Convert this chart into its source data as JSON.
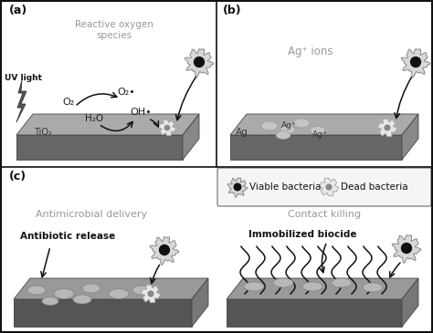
{
  "bg_color": "#ffffff",
  "panel_a_label": "(a)",
  "panel_b_label": "(b)",
  "panel_c_label": "(c)",
  "surf_top_a": "#aaaaaa",
  "surf_side_a": "#666666",
  "surf_right_a": "#888888",
  "surf_top_b": "#aaaaaa",
  "surf_side_b": "#666666",
  "surf_right_b": "#888888",
  "surf_top_cl": "#999999",
  "surf_side_cl": "#555555",
  "surf_right_cl": "#777777",
  "surf_top_cr": "#999999",
  "surf_side_cr": "#555555",
  "surf_right_cr": "#777777",
  "text_gray": "#999999",
  "text_black": "#111111",
  "label_uv": "UV light",
  "label_ros": "Reactive oxygen\nspecies",
  "label_tio2": "TiO₂",
  "label_o2": "O₂",
  "label_o2rad": "O₂•",
  "label_h2o": "H₂O",
  "label_oh": "OH•",
  "label_ag_ions": "Ag⁺ ions",
  "label_ag": "Ag",
  "label_agplus1": "Ag⁺",
  "label_agplus2": "Ag⁺",
  "label_antimicrobial": "Antimicrobial delivery",
  "label_antibiotic": "Antibiotic release",
  "label_contact": "Contact killing",
  "label_immobilized": "Immobilized biocide",
  "label_viable": "Viable bacteria",
  "label_dead": "Dead bacteria"
}
